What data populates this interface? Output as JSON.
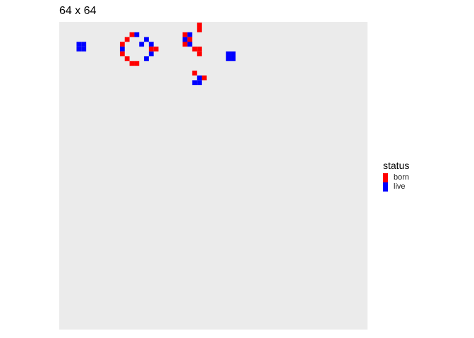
{
  "chart_data": {
    "type": "heatmap",
    "title": "64 x 64",
    "grid_size": [
      64,
      64
    ],
    "panel_color": "#EBEBEB",
    "grid": false,
    "legend": {
      "title": "status",
      "position": "right",
      "entries": [
        {
          "label": "born",
          "color": "#FF0000"
        },
        {
          "label": "live",
          "color": "#0000FF"
        }
      ]
    },
    "cells": [
      {
        "x": 4,
        "y": 2,
        "status": "live"
      },
      {
        "x": 5,
        "y": 2,
        "status": "live"
      },
      {
        "x": 4,
        "y": 3,
        "status": "live"
      },
      {
        "x": 5,
        "y": 3,
        "status": "live"
      },
      {
        "x": 35,
        "y": 5,
        "status": "live"
      },
      {
        "x": 36,
        "y": 5,
        "status": "live"
      },
      {
        "x": 35,
        "y": 4,
        "status": "live"
      },
      {
        "x": 36,
        "y": 4,
        "status": "live"
      },
      {
        "x": 15,
        "y": 0,
        "status": "born"
      },
      {
        "x": 16,
        "y": 0,
        "status": "live"
      },
      {
        "x": 14,
        "y": 1,
        "status": "born"
      },
      {
        "x": 18,
        "y": 1,
        "status": "live"
      },
      {
        "x": 13,
        "y": 2,
        "status": "born"
      },
      {
        "x": 17,
        "y": 2,
        "status": "live"
      },
      {
        "x": 19,
        "y": 2,
        "status": "live"
      },
      {
        "x": 13,
        "y": 3,
        "status": "live"
      },
      {
        "x": 20,
        "y": 3,
        "status": "born"
      },
      {
        "x": 13,
        "y": 4,
        "status": "born"
      },
      {
        "x": 19,
        "y": 4,
        "status": "live"
      },
      {
        "x": 14,
        "y": 5,
        "status": "born"
      },
      {
        "x": 18,
        "y": 5,
        "status": "live"
      },
      {
        "x": 15,
        "y": 6,
        "status": "born"
      },
      {
        "x": 16,
        "y": 6,
        "status": "born"
      },
      {
        "x": 19,
        "y": 3,
        "status": "born"
      },
      {
        "x": 26,
        "y": 0,
        "status": "born"
      },
      {
        "x": 27,
        "y": 0,
        "status": "live"
      },
      {
        "x": 26,
        "y": 1,
        "status": "live"
      },
      {
        "x": 27,
        "y": 1,
        "status": "born"
      },
      {
        "x": 26,
        "y": 2,
        "status": "born"
      },
      {
        "x": 27,
        "y": 2,
        "status": "live"
      },
      {
        "x": 28,
        "y": 3,
        "status": "born"
      },
      {
        "x": 29,
        "y": -1,
        "status": "born"
      },
      {
        "x": 29,
        "y": -2,
        "status": "born"
      },
      {
        "x": 29,
        "y": 3,
        "status": "born"
      },
      {
        "x": 29,
        "y": 4,
        "status": "born"
      },
      {
        "x": 28,
        "y": 8,
        "status": "born"
      },
      {
        "x": 29,
        "y": 9,
        "status": "live"
      },
      {
        "x": 30,
        "y": 9,
        "status": "born"
      },
      {
        "x": 28,
        "y": 10,
        "status": "live"
      },
      {
        "x": 29,
        "y": 10,
        "status": "live"
      }
    ]
  }
}
